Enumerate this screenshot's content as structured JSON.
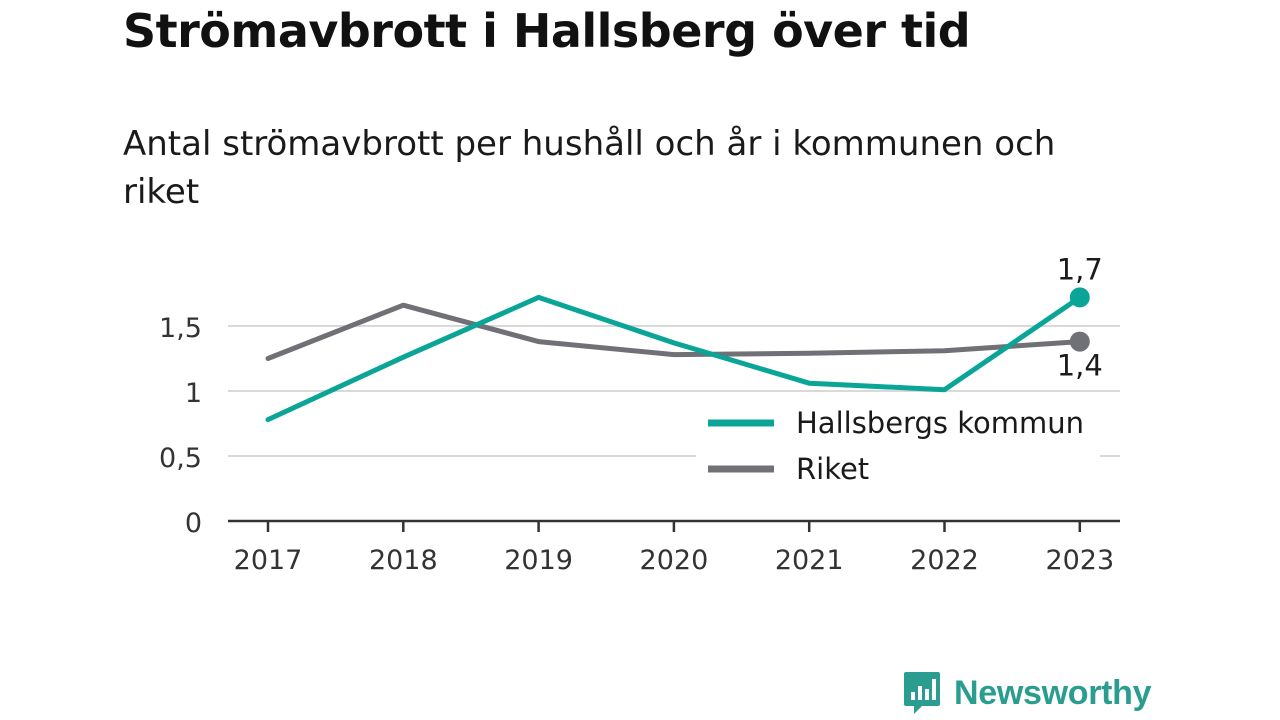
{
  "title": "Strömavbrott i Hallsberg över tid",
  "subtitle": "Antal strömavbrott per hushåll och år i kommunen och riket",
  "brand": {
    "name": "Newsworthy",
    "icon": "bar-chart-speech-bubble-icon",
    "color": "#2a9d90"
  },
  "chart_data": {
    "type": "line",
    "x": [
      "2017",
      "2018",
      "2019",
      "2020",
      "2021",
      "2022",
      "2023"
    ],
    "series": [
      {
        "name": "Hallsbergs kommun",
        "color": "#0aa596",
        "values": [
          0.78,
          1.26,
          1.72,
          1.37,
          1.06,
          1.01,
          1.72
        ],
        "end_label": "1,7"
      },
      {
        "name": "Riket",
        "color": "#707077",
        "values": [
          1.25,
          1.66,
          1.38,
          1.28,
          1.29,
          1.31,
          1.38
        ],
        "end_label": "1,4"
      }
    ],
    "yticks": [
      {
        "value": 0,
        "label": "0"
      },
      {
        "value": 0.5,
        "label": "0,5"
      },
      {
        "value": 1,
        "label": "1"
      },
      {
        "value": 1.5,
        "label": "1,5"
      }
    ],
    "ylim": [
      0,
      1.8
    ],
    "grid": true,
    "legend": "bottom-right"
  }
}
